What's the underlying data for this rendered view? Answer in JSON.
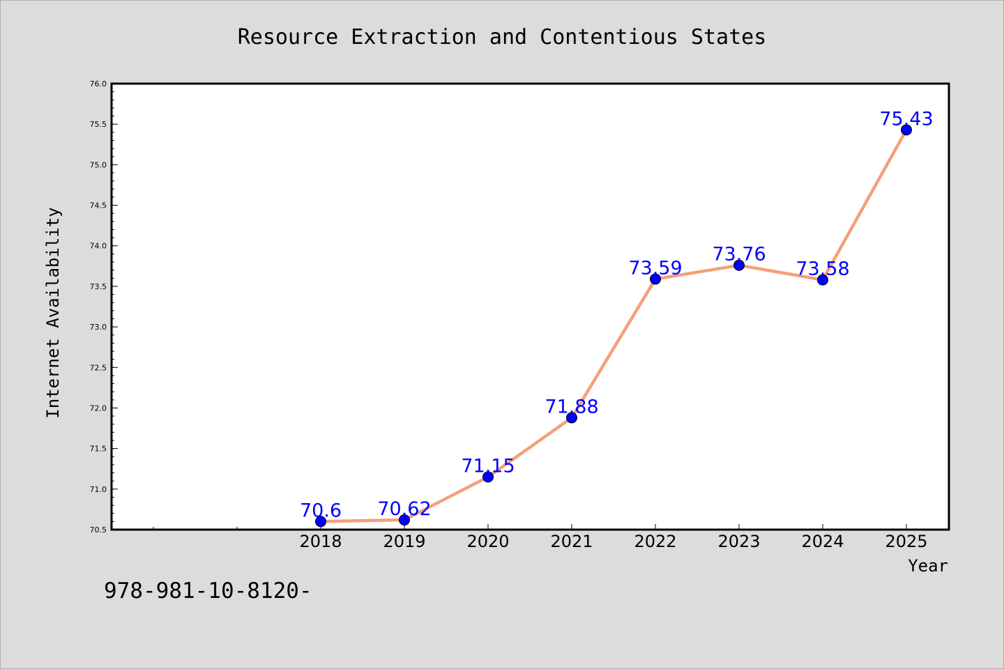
{
  "chart_data": {
    "type": "line",
    "title": "Resource Extraction and Contentious States",
    "xlabel": "Year",
    "ylabel": "Internet Availability",
    "x": [
      "2018",
      "2019",
      "2020",
      "2021",
      "2022",
      "2023",
      "2024",
      "2025"
    ],
    "values": [
      70.6,
      70.62,
      71.15,
      71.88,
      73.59,
      73.76,
      73.58,
      75.43
    ],
    "data_labels": [
      "70.6",
      "70.62",
      "71.15",
      "71.88",
      "73.59",
      "73.76",
      "73.58",
      "75.43"
    ],
    "ylim": [
      70.5,
      76.0
    ],
    "yticks": [
      "70.5",
      "71.0",
      "71.5",
      "72.0",
      "72.5",
      "73.0",
      "73.5",
      "74.0",
      "74.5",
      "75.0",
      "75.5",
      "76.0"
    ],
    "grid": false,
    "line_color": "#f4a07a",
    "marker_color": "#0000ff",
    "label_color": "#0000ff",
    "background_color": "#dcdcdc"
  },
  "footer_text": "978-981-10-8120-"
}
